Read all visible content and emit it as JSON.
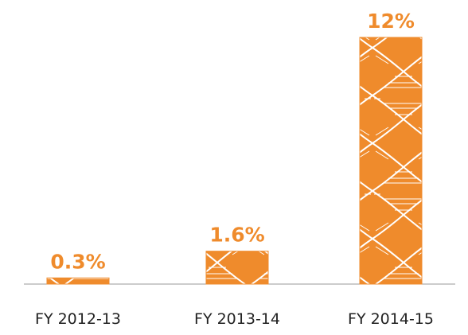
{
  "chart_data": {
    "type": "bar",
    "categories": [
      "FY 2012-13",
      "FY 2013-14",
      "FY 2014-15"
    ],
    "values": [
      0.3,
      1.6,
      12
    ],
    "value_labels": [
      "0.3%",
      "1.6%",
      "12%"
    ],
    "color": "#ef8b2c"
  }
}
